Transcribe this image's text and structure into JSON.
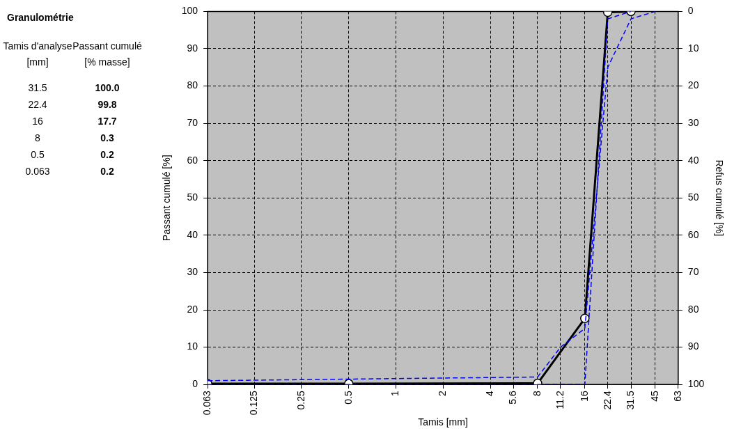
{
  "chart_data": [
    {
      "type": "other",
      "title": "Granulométrie",
      "annotations": [
        "Tamis d'analyse [mm]",
        "Passant cumulé [% masse]",
        "31.5",
        "100.0",
        "22.4",
        "99.8",
        "16",
        "17.7",
        "8",
        "0.3",
        "0.5",
        "0.2",
        "0.063",
        "0.2"
      ]
    },
    {
      "type": "line",
      "xlabel": "Tamis [mm]",
      "ylabel": "Passant cumulé [%]",
      "y2label": "Refus cumulé [%]",
      "log": "x",
      "xlim": [
        0.063,
        63
      ],
      "xticks": [
        0.063,
        0.125,
        0.25,
        0.5,
        1,
        2,
        4,
        5.6,
        8,
        11.2,
        16,
        22.4,
        31.5,
        45,
        63
      ],
      "ylim": [
        0,
        100
      ],
      "yticks": [
        0,
        10,
        20,
        30,
        40,
        50,
        60,
        70,
        80,
        90,
        100
      ],
      "y2lim": [
        100,
        0
      ],
      "y2ticks": [
        0,
        10,
        20,
        30,
        40,
        50,
        60,
        70,
        80,
        90,
        100
      ],
      "grid": true,
      "series": [
        {
          "type": "line",
          "color": "#0000ff",
          "line_style": "dashed",
          "marker": "none",
          "x": [
            0.063,
            8,
            11.2,
            16,
            22.4,
            31.5,
            45
          ],
          "values": [
            1,
            2,
            10,
            15,
            85,
            98,
            100
          ]
        },
        {
          "type": "line",
          "color": "#0000ff",
          "line_style": "dashed",
          "marker": "none",
          "x": [
            0.063,
            16,
            22.4,
            31.5
          ],
          "values": [
            0,
            0,
            98,
            100
          ]
        },
        {
          "type": "line",
          "color": "#000000",
          "line_style": "solid",
          "marker": "circle",
          "x": [
            31.5,
            22.4,
            16,
            8,
            0.5,
            0.063
          ],
          "values": [
            100,
            99.8,
            17.7,
            0.3,
            0.2,
            0.2
          ]
        }
      ]
    }
  ]
}
